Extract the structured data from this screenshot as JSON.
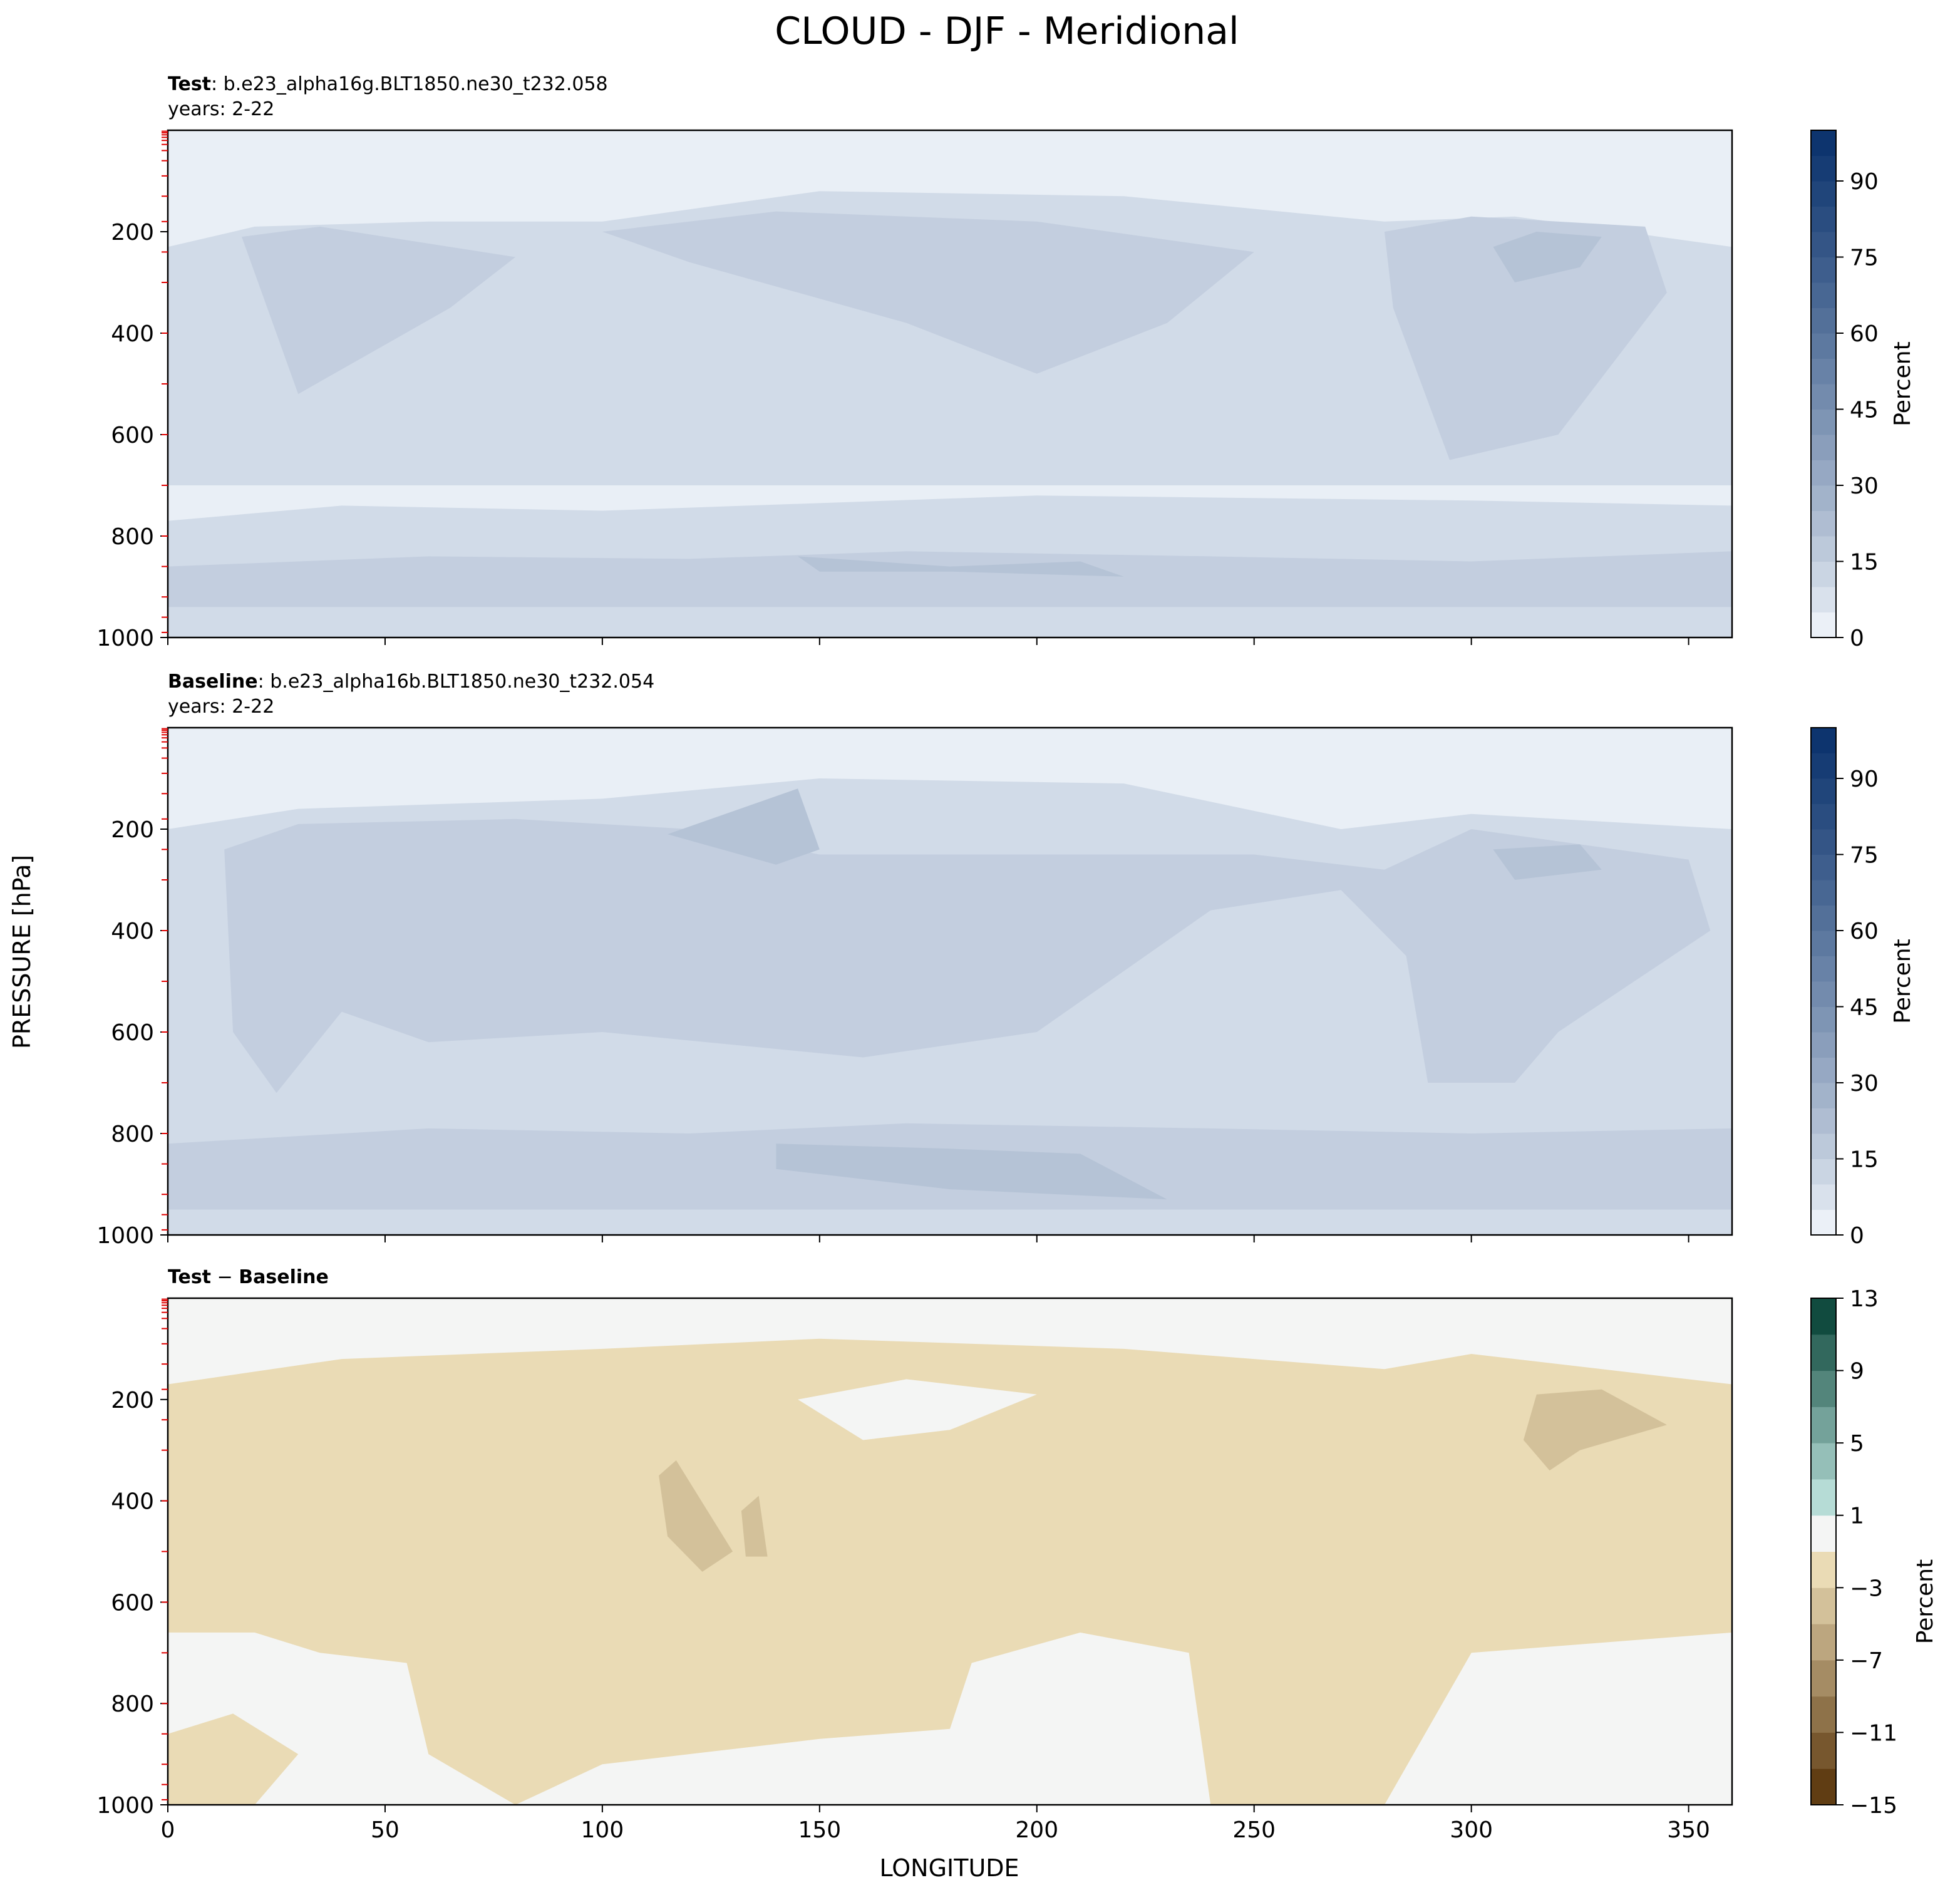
{
  "figure": {
    "title": "CLOUD - DJF - Meridional",
    "ylabel": "PRESSURE [hPa]",
    "xlabel": "LONGITUDE"
  },
  "chart_data": [
    {
      "type": "heatmap",
      "panel": "test",
      "label_bold": "Test",
      "label_rest": ": b.e23_alpha16g.BLT1850.ne30_t232.058",
      "years": "years: 2-22",
      "xlim": [
        0,
        360
      ],
      "ylim": [
        1000,
        0
      ],
      "xticks": [
        "0",
        "50",
        "100",
        "150",
        "200",
        "250",
        "300",
        "350"
      ],
      "yticks": [
        "200",
        "400",
        "600",
        "800",
        "1000"
      ],
      "colorbar": {
        "label": "Percent",
        "cmap": "blues",
        "ticks": [
          "0",
          "15",
          "30",
          "45",
          "60",
          "75",
          "90"
        ],
        "range": [
          0,
          100
        ]
      },
      "regions": [
        {
          "level": 10,
          "polygon": [
            [
              0,
              770
            ],
            [
              40,
              740
            ],
            [
              100,
              750
            ],
            [
              200,
              720
            ],
            [
              300,
              730
            ],
            [
              360,
              740
            ],
            [
              360,
              1000
            ],
            [
              0,
              1000
            ]
          ]
        },
        {
          "level": 15,
          "polygon": [
            [
              0,
              860
            ],
            [
              60,
              840
            ],
            [
              120,
              845
            ],
            [
              170,
              830
            ],
            [
              240,
              840
            ],
            [
              300,
              850
            ],
            [
              360,
              830
            ],
            [
              360,
              940
            ],
            [
              0,
              940
            ]
          ]
        },
        {
          "level": 20,
          "polygon": [
            [
              145,
              840
            ],
            [
              180,
              860
            ],
            [
              210,
              850
            ],
            [
              220,
              880
            ],
            [
              180,
              870
            ],
            [
              150,
              870
            ]
          ]
        },
        {
          "level": 10,
          "polygon": [
            [
              0,
              230
            ],
            [
              20,
              190
            ],
            [
              60,
              180
            ],
            [
              100,
              180
            ],
            [
              150,
              120
            ],
            [
              220,
              130
            ],
            [
              280,
              180
            ],
            [
              310,
              170
            ],
            [
              360,
              230
            ],
            [
              360,
              700
            ],
            [
              0,
              700
            ]
          ]
        },
        {
          "level": 15,
          "polygon": [
            [
              17,
              210
            ],
            [
              35,
              190
            ],
            [
              80,
              250
            ],
            [
              65,
              350
            ],
            [
              30,
              520
            ]
          ]
        },
        {
          "level": 15,
          "polygon": [
            [
              100,
              200
            ],
            [
              140,
              160
            ],
            [
              200,
              180
            ],
            [
              250,
              240
            ],
            [
              230,
              380
            ],
            [
              200,
              480
            ],
            [
              170,
              380
            ],
            [
              120,
              260
            ]
          ]
        },
        {
          "level": 15,
          "polygon": [
            [
              280,
              200
            ],
            [
              300,
              170
            ],
            [
              340,
              190
            ],
            [
              345,
              320
            ],
            [
              320,
              600
            ],
            [
              295,
              650
            ],
            [
              282,
              350
            ]
          ]
        },
        {
          "level": 20,
          "polygon": [
            [
              305,
              230
            ],
            [
              315,
              200
            ],
            [
              330,
              210
            ],
            [
              325,
              270
            ],
            [
              310,
              300
            ]
          ]
        }
      ]
    },
    {
      "type": "heatmap",
      "panel": "baseline",
      "label_bold": "Baseline",
      "label_rest": ": b.e23_alpha16b.BLT1850.ne30_t232.054",
      "years": "years: 2-22",
      "xlim": [
        0,
        360
      ],
      "ylim": [
        1000,
        0
      ],
      "xticks": [
        "0",
        "50",
        "100",
        "150",
        "200",
        "250",
        "300",
        "350"
      ],
      "yticks": [
        "200",
        "400",
        "600",
        "800",
        "1000"
      ],
      "colorbar": {
        "label": "Percent",
        "cmap": "blues",
        "ticks": [
          "0",
          "15",
          "30",
          "45",
          "60",
          "75",
          "90"
        ],
        "range": [
          0,
          100
        ]
      },
      "regions": [
        {
          "level": 10,
          "polygon": [
            [
              0,
              200
            ],
            [
              30,
              160
            ],
            [
              100,
              140
            ],
            [
              150,
              100
            ],
            [
              220,
              110
            ],
            [
              270,
              200
            ],
            [
              300,
              170
            ],
            [
              360,
              200
            ],
            [
              360,
              1000
            ],
            [
              0,
              1000
            ]
          ]
        },
        {
          "level": 15,
          "polygon": [
            [
              13,
              240
            ],
            [
              30,
              190
            ],
            [
              80,
              180
            ],
            [
              120,
              200
            ],
            [
              150,
              250
            ],
            [
              250,
              250
            ],
            [
              280,
              280
            ],
            [
              300,
              200
            ],
            [
              350,
              260
            ],
            [
              355,
              400
            ],
            [
              320,
              600
            ],
            [
              310,
              700
            ],
            [
              290,
              700
            ],
            [
              285,
              450
            ],
            [
              270,
              320
            ],
            [
              240,
              360
            ],
            [
              200,
              600
            ],
            [
              160,
              650
            ],
            [
              100,
              600
            ],
            [
              60,
              620
            ],
            [
              40,
              560
            ],
            [
              25,
              720
            ],
            [
              15,
              600
            ]
          ]
        },
        {
          "level": 15,
          "polygon": [
            [
              0,
              820
            ],
            [
              60,
              790
            ],
            [
              120,
              800
            ],
            [
              170,
              780
            ],
            [
              240,
              790
            ],
            [
              300,
              800
            ],
            [
              360,
              790
            ],
            [
              360,
              950
            ],
            [
              0,
              950
            ]
          ]
        },
        {
          "level": 20,
          "polygon": [
            [
              140,
              820
            ],
            [
              180,
              830
            ],
            [
              210,
              840
            ],
            [
              230,
              930
            ],
            [
              180,
              910
            ],
            [
              140,
              870
            ]
          ]
        },
        {
          "level": 20,
          "polygon": [
            [
              305,
              240
            ],
            [
              325,
              230
            ],
            [
              330,
              280
            ],
            [
              310,
              300
            ]
          ]
        },
        {
          "level": 20,
          "polygon": [
            [
              115,
              210
            ],
            [
              145,
              120
            ],
            [
              150,
              240
            ],
            [
              140,
              270
            ]
          ]
        }
      ]
    },
    {
      "type": "heatmap",
      "panel": "difference",
      "label_bold_a": "Test",
      "label_minus": " − ",
      "label_bold_b": "Baseline",
      "xlim": [
        0,
        360
      ],
      "ylim": [
        1000,
        0
      ],
      "xticks": [
        "0",
        "50",
        "100",
        "150",
        "200",
        "250",
        "300",
        "350"
      ],
      "yticks": [
        "200",
        "400",
        "600",
        "800",
        "1000"
      ],
      "colorbar": {
        "label": "Percent",
        "cmap": "BrBG",
        "ticks": [
          "−15",
          "−11",
          "−7",
          "−3",
          "1",
          "5",
          "9",
          "13"
        ],
        "range": [
          -15,
          13
        ]
      },
      "regions": [
        {
          "level": -2,
          "polygon": [
            [
              0,
              170
            ],
            [
              40,
              120
            ],
            [
              100,
              100
            ],
            [
              150,
              80
            ],
            [
              220,
              100
            ],
            [
              280,
              140
            ],
            [
              300,
              110
            ],
            [
              360,
              170
            ],
            [
              360,
              660
            ],
            [
              300,
              700
            ],
            [
              280,
              1000
            ],
            [
              240,
              1000
            ],
            [
              235,
              700
            ],
            [
              210,
              660
            ],
            [
              185,
              720
            ],
            [
              180,
              850
            ],
            [
              150,
              870
            ],
            [
              100,
              920
            ],
            [
              80,
              1000
            ],
            [
              60,
              900
            ],
            [
              55,
              720
            ],
            [
              35,
              700
            ],
            [
              20,
              660
            ],
            [
              0,
              660
            ]
          ]
        },
        {
          "level": 0,
          "polygon": [
            [
              145,
              200
            ],
            [
              170,
              160
            ],
            [
              200,
              190
            ],
            [
              180,
              260
            ],
            [
              160,
              280
            ]
          ]
        },
        {
          "level": -4,
          "polygon": [
            [
              113,
              350
            ],
            [
              117,
              320
            ],
            [
              130,
              500
            ],
            [
              123,
              540
            ],
            [
              115,
              470
            ]
          ]
        },
        {
          "level": -4,
          "polygon": [
            [
              132,
              420
            ],
            [
              136,
              390
            ],
            [
              138,
              510
            ],
            [
              133,
              510
            ]
          ]
        },
        {
          "level": -4,
          "polygon": [
            [
              315,
              190
            ],
            [
              330,
              180
            ],
            [
              345,
              250
            ],
            [
              325,
              300
            ],
            [
              318,
              340
            ],
            [
              312,
              280
            ]
          ]
        },
        {
          "level": -2,
          "polygon": [
            [
              0,
              860
            ],
            [
              15,
              820
            ],
            [
              30,
              900
            ],
            [
              20,
              1000
            ],
            [
              0,
              1000
            ]
          ]
        }
      ]
    }
  ]
}
